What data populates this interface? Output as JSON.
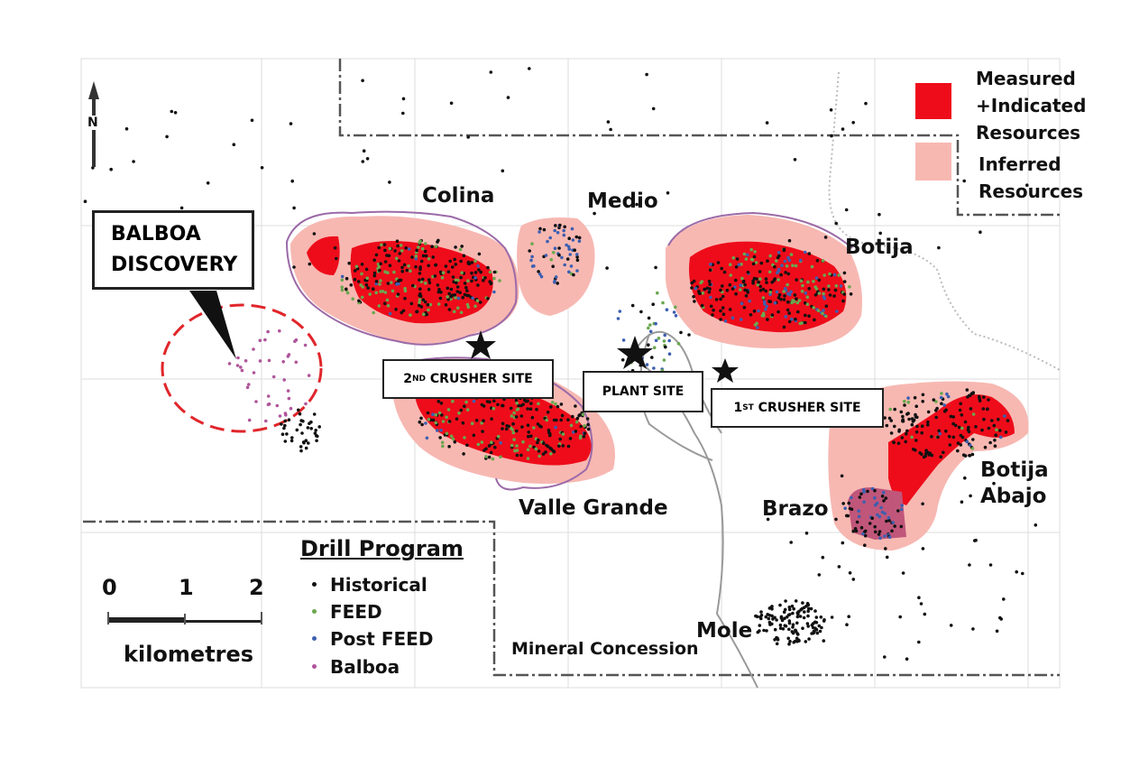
{
  "legend_resources": {
    "measured": "Measured\n+Indicated\nResources",
    "measured_lines": [
      "Measured",
      "+Indicated",
      "Resources"
    ],
    "inferred_lines": [
      "Inferred",
      "Resources"
    ],
    "measured_color": "#ee0c1a",
    "inferred_color": "#f7b8b2"
  },
  "north_label": "N",
  "deposits": {
    "colina": "Colina",
    "medio": "Medio",
    "botija": "Botija",
    "valle_grande": "Valle Grande",
    "brazo": "Brazo",
    "botija_abajo_1": "Botija",
    "botija_abajo_2": "Abajo",
    "mole": "Mole"
  },
  "callouts": {
    "balboa_1": "BALBOA",
    "balboa_2": "DISCOVERY"
  },
  "sites": {
    "crusher2_num": "2",
    "crusher2_sup": "ND",
    "crusher2_text": " CRUSHER SITE",
    "plant": "PLANT SITE",
    "crusher1_num": "1",
    "crusher1_sup": "ST",
    "crusher1_text": " CRUSHER SITE"
  },
  "concession_label": "Mineral Concession",
  "drill_program": {
    "title": "Drill Program",
    "items": [
      {
        "label": "Historical",
        "color": "#111111"
      },
      {
        "label": "FEED",
        "color": "#6aa84f"
      },
      {
        "label": "Post FEED",
        "color": "#3d5fb0"
      },
      {
        "label": "Balboa",
        "color": "#b0559a"
      }
    ]
  },
  "scale": {
    "ticks": [
      "0",
      "1",
      "2"
    ],
    "unit": "kilometres"
  }
}
